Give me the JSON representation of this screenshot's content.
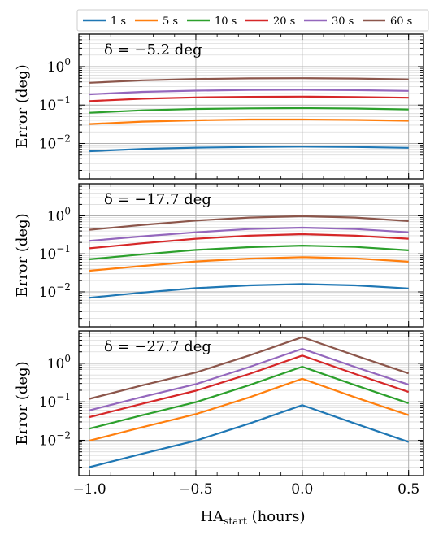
{
  "chart_data": [
    {
      "type": "line",
      "annotation": "δ = −5.2 deg",
      "ylabel": "Error (deg)",
      "yscale": "log",
      "xlim": [
        -1.05,
        0.57
      ],
      "ylim": [
        0.0012,
        7
      ],
      "x": [
        -1.0,
        -0.75,
        -0.5,
        -0.25,
        0.0,
        0.25,
        0.5
      ],
      "xticks": [
        -1.0,
        -0.5,
        0.0,
        0.5
      ],
      "grid": true,
      "series": [
        {
          "name": "1 s",
          "color": "#1f77b4",
          "values": [
            0.0063,
            0.0072,
            0.0078,
            0.0081,
            0.0083,
            0.0081,
            0.0077
          ]
        },
        {
          "name": "5 s",
          "color": "#ff7f0e",
          "values": [
            0.032,
            0.037,
            0.04,
            0.042,
            0.042,
            0.041,
            0.039
          ]
        },
        {
          "name": "10 s",
          "color": "#2ca02c",
          "values": [
            0.063,
            0.073,
            0.079,
            0.082,
            0.083,
            0.081,
            0.077
          ]
        },
        {
          "name": "20 s",
          "color": "#d62728",
          "values": [
            0.127,
            0.146,
            0.158,
            0.164,
            0.166,
            0.162,
            0.155
          ]
        },
        {
          "name": "30 s",
          "color": "#9467bd",
          "values": [
            0.19,
            0.22,
            0.237,
            0.246,
            0.25,
            0.244,
            0.233
          ]
        },
        {
          "name": "60 s",
          "color": "#8c564b",
          "values": [
            0.38,
            0.44,
            0.475,
            0.495,
            0.5,
            0.49,
            0.465
          ]
        }
      ]
    },
    {
      "type": "line",
      "annotation": "δ = −17.7 deg",
      "ylabel": "Error (deg)",
      "yscale": "log",
      "xlim": [
        -1.05,
        0.57
      ],
      "ylim": [
        0.0012,
        7
      ],
      "x": [
        -1.0,
        -0.75,
        -0.5,
        -0.25,
        0.0,
        0.25,
        0.5
      ],
      "xticks": [
        -1.0,
        -0.5,
        0.0,
        0.5
      ],
      "grid": true,
      "series": [
        {
          "name": "1 s",
          "color": "#1f77b4",
          "values": [
            0.007,
            0.0096,
            0.0125,
            0.0148,
            0.016,
            0.0148,
            0.0123
          ]
        },
        {
          "name": "5 s",
          "color": "#ff7f0e",
          "values": [
            0.036,
            0.048,
            0.063,
            0.075,
            0.082,
            0.076,
            0.062
          ]
        },
        {
          "name": "10 s",
          "color": "#2ca02c",
          "values": [
            0.072,
            0.097,
            0.127,
            0.15,
            0.165,
            0.152,
            0.124
          ]
        },
        {
          "name": "20 s",
          "color": "#d62728",
          "values": [
            0.14,
            0.19,
            0.25,
            0.3,
            0.33,
            0.3,
            0.25
          ]
        },
        {
          "name": "30 s",
          "color": "#9467bd",
          "values": [
            0.22,
            0.29,
            0.37,
            0.45,
            0.49,
            0.45,
            0.37
          ]
        },
        {
          "name": "60 s",
          "color": "#8c564b",
          "values": [
            0.43,
            0.58,
            0.75,
            0.9,
            0.98,
            0.9,
            0.73
          ]
        }
      ]
    },
    {
      "type": "line",
      "annotation": "δ = −27.7 deg",
      "ylabel": "Error (deg)",
      "xlabel": "HA_start (hours)",
      "yscale": "log",
      "xlim": [
        -1.05,
        0.57
      ],
      "ylim": [
        0.0012,
        7
      ],
      "x": [
        -1.0,
        -0.75,
        -0.5,
        -0.25,
        0.0,
        0.25,
        0.5
      ],
      "xticks": [
        -1.0,
        -0.5,
        0.0,
        0.5
      ],
      "xticklabels": [
        "−1.0",
        "−0.5",
        "0.0",
        "0.5"
      ],
      "grid": true,
      "series": [
        {
          "name": "1 s",
          "color": "#1f77b4",
          "values": [
            0.002,
            0.0045,
            0.0098,
            0.027,
            0.082,
            0.027,
            0.009
          ]
        },
        {
          "name": "5 s",
          "color": "#ff7f0e",
          "values": [
            0.0098,
            0.022,
            0.048,
            0.13,
            0.4,
            0.13,
            0.045
          ]
        },
        {
          "name": "10 s",
          "color": "#2ca02c",
          "values": [
            0.02,
            0.045,
            0.098,
            0.27,
            0.82,
            0.27,
            0.092
          ]
        },
        {
          "name": "20 s",
          "color": "#d62728",
          "values": [
            0.04,
            0.09,
            0.195,
            0.53,
            1.6,
            0.53,
            0.18
          ]
        },
        {
          "name": "30 s",
          "color": "#9467bd",
          "values": [
            0.06,
            0.135,
            0.29,
            0.8,
            2.4,
            0.8,
            0.28
          ]
        },
        {
          "name": "60 s",
          "color": "#8c564b",
          "values": [
            0.12,
            0.27,
            0.58,
            1.6,
            4.8,
            1.6,
            0.55
          ]
        }
      ]
    }
  ],
  "legend": {
    "placement": "top",
    "entries": [
      {
        "label": "1 s",
        "color": "#1f77b4"
      },
      {
        "label": "5 s",
        "color": "#ff7f0e"
      },
      {
        "label": "10 s",
        "color": "#2ca02c"
      },
      {
        "label": "20 s",
        "color": "#d62728"
      },
      {
        "label": "30 s",
        "color": "#9467bd"
      },
      {
        "label": "60 s",
        "color": "#8c564b"
      }
    ]
  },
  "yticklabels": [
    {
      "value": 0.01,
      "base": "10",
      "exp": "−2"
    },
    {
      "value": 0.1,
      "base": "10",
      "exp": "−1"
    },
    {
      "value": 1,
      "base": "10",
      "exp": "0"
    }
  ],
  "xlabel": {
    "main": "HA",
    "sub": "start",
    "rest": " (hours)"
  }
}
